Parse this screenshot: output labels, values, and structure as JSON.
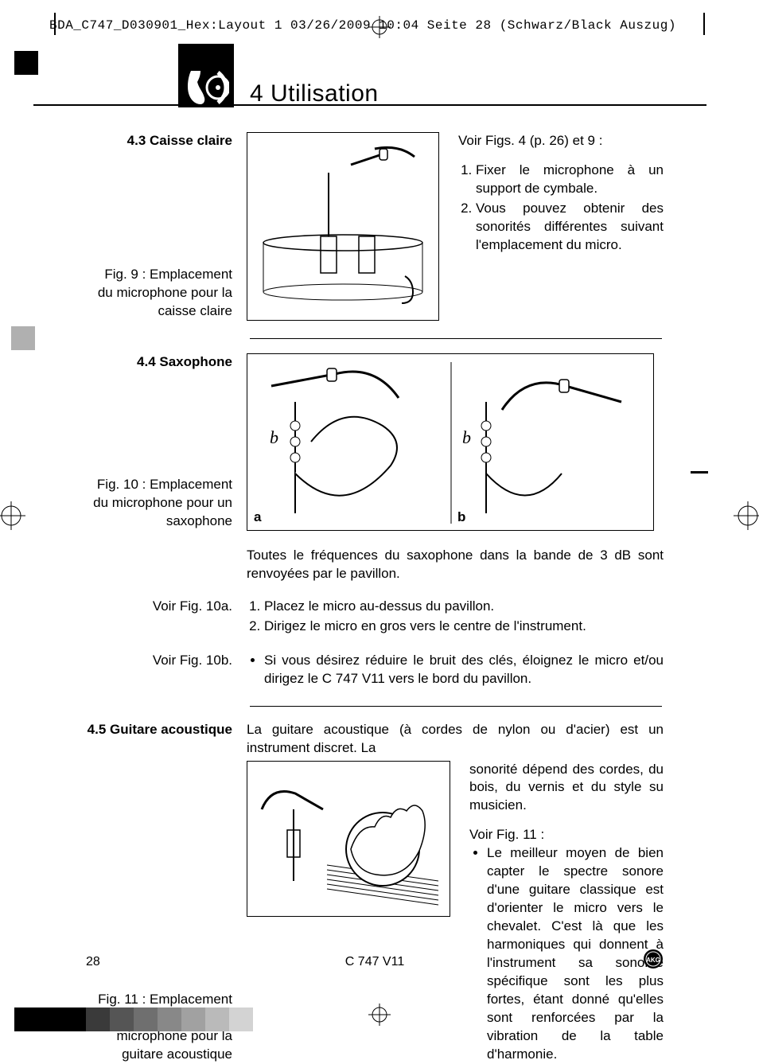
{
  "printmark": "BDA_C747_D030901_Hex:Layout 1  03/26/2009  10:04  Seite 28   (Schwarz/Black Auszug)",
  "chapter_title": "4 Utilisation",
  "sec43": {
    "heading": "4.3 Caisse claire",
    "caption": "Fig. 9 : Emplacement du microphone pour la caisse claire",
    "intro": "Voir Figs. 4 (p. 26) et 9 :",
    "steps": [
      "Fixer le microphone à un support de cymbale.",
      "Vous pouvez obtenir des sonorités différentes suivant l'emplacement du micro."
    ]
  },
  "sec44": {
    "heading": "4.4 Saxophone",
    "caption": "Fig. 10 : Emplacement du microphone pour un saxophone",
    "label_a": "a",
    "label_b": "b",
    "para": "Toutes le fréquences du saxophone dans la bande de 3 dB sont renvoyées par le pavillon.",
    "ref_a": "Voir Fig. 10a.",
    "steps_a": [
      "Placez le micro au-dessus du pavillon.",
      "Dirigez le micro en gros vers le centre de l'instrument."
    ],
    "ref_b": "Voir Fig. 10b.",
    "bullet_b": "Si vous désirez réduire le bruit des clés, éloignez le micro et/ou dirigez le C 747 V11 vers le bord du pavillon."
  },
  "sec45": {
    "heading": "4.5 Guitare acoustique",
    "caption": "Fig. 11 : Emplacement recommandé du microphone pour la guitare acoustique",
    "intro_line": "La guitare acoustique (à cordes de nylon ou d'acier) est un instrument discret. La",
    "cont": "sonorité dépend des cordes, du bois, du vernis et du style su musicien.",
    "ref": "Voir Fig. 11 :",
    "bullet": "Le meilleur moyen de bien capter le spectre sonore d'une guitare classique est d'orienter le micro vers le chevalet. C'est là que les harmoniques qui donnent à l'instrument sa sonorité spécifique sont les plus fortes, étant donné qu'elles sont renforcées par la vibration de la table d'harmonie."
  },
  "footer": {
    "page": "28",
    "model": "C 747 V11"
  },
  "colorbar": [
    "#000000",
    "#000000",
    "#000000",
    "#3a3a3a",
    "#555555",
    "#6f6f6f",
    "#888888",
    "#a1a1a1",
    "#bababa",
    "#d3d3d3"
  ]
}
